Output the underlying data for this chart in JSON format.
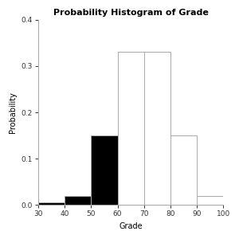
{
  "title": "Probability Histogram of Grade",
  "xlabel": "Grade",
  "ylabel": "Probability",
  "bin_edges": [
    30,
    40,
    50,
    60,
    70,
    80,
    90,
    100
  ],
  "probabilities": [
    0.005,
    0.02,
    0.15,
    0.33,
    0.33,
    0.15,
    0.02
  ],
  "colors": [
    "black",
    "black",
    "black",
    "white",
    "white",
    "white",
    "white"
  ],
  "edgecolor": "#aaaaaa",
  "xlim": [
    30,
    100
  ],
  "ylim": [
    0,
    0.4
  ],
  "xticks": [
    30,
    40,
    50,
    60,
    70,
    80,
    90,
    100
  ],
  "yticks": [
    0.0,
    0.1,
    0.2,
    0.3,
    0.4
  ],
  "ytick_labels": [
    "0.0",
    "0.1",
    "0.2",
    "0.3",
    "0.4"
  ],
  "background_color": "#ffffff",
  "title_fontsize": 8,
  "label_fontsize": 7,
  "tick_fontsize": 6.5
}
